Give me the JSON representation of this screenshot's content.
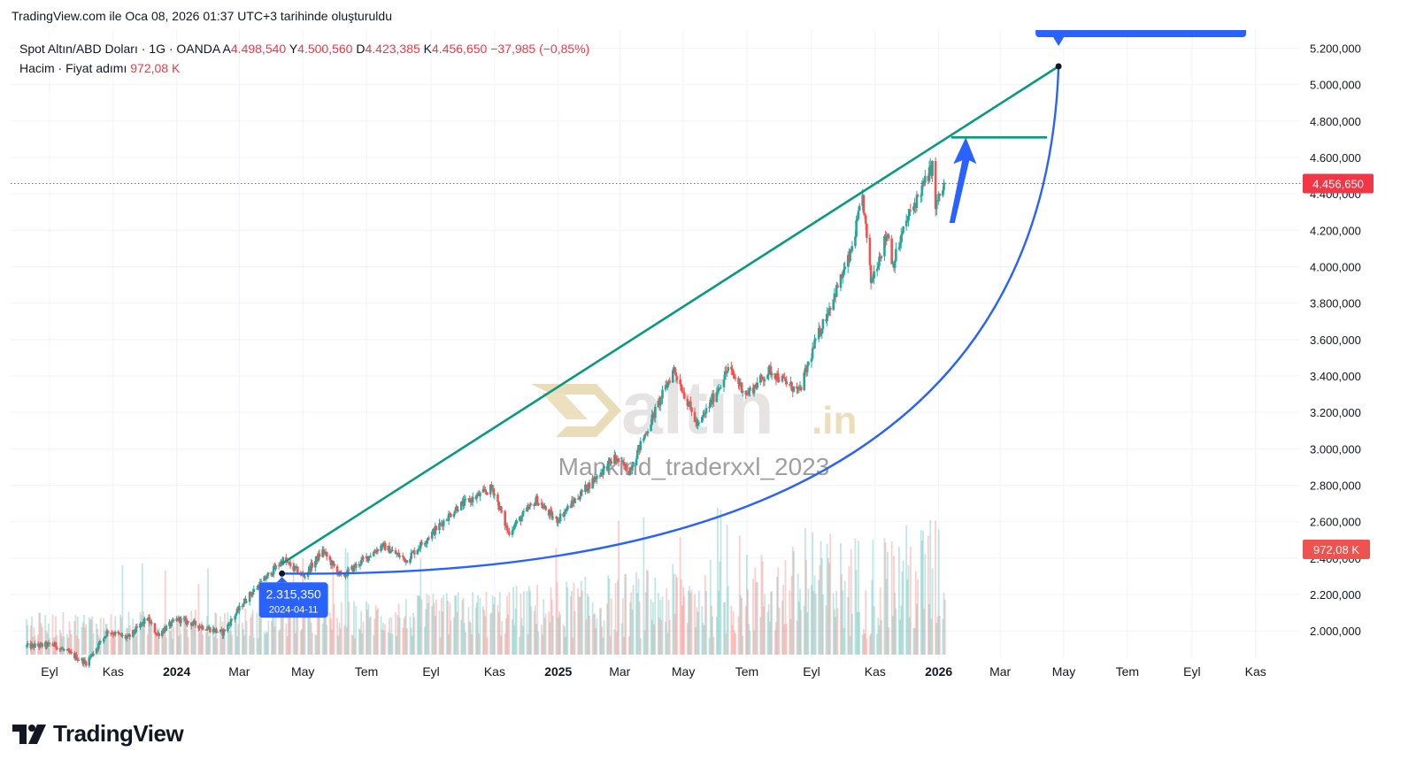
{
  "snapshot_line": "TradingView.com ile Oca 08, 2026 01:37 UTC+3 tarihinde oluşturuldu",
  "legend": {
    "symbol": "Spot Altın/ABD Doları · 1G · OANDA",
    "o_label": "A",
    "o_value": "4.498,540",
    "h_label": "Y",
    "h_value": "4.500,560",
    "l_label": "D",
    "l_value": "4.423,385",
    "c_label": "K",
    "c_value": "4.456,650",
    "change": "−37,985 (−0,85%)",
    "volume_label": "Hacim · Fiyat adımı",
    "volume_value": "972,08 K"
  },
  "watermark": {
    "brand": "altin",
    "suffix": ".in",
    "author": "Mankind_traderxxl_2023"
  },
  "footer": {
    "brand": "TradingView"
  },
  "colors": {
    "up": "#26a69a",
    "down": "#ef5350",
    "channel": "#089981",
    "curve": "#2962ff",
    "price_line": "#f23645",
    "grid": "#f0f3fa",
    "axis_text": "#131722"
  },
  "chart_data": {
    "type": "candlestick",
    "y_axis": {
      "ticks": [
        "2.000,000",
        "2.200,000",
        "2.400,000",
        "2.600,000",
        "2.800,000",
        "3.000,000",
        "3.200,000",
        "3.400,000",
        "3.600,000",
        "3.800,000",
        "4.000,000",
        "4.200,000",
        "4.400,000",
        "4.600,000",
        "4.800,000",
        "5.000,000",
        "5.200,000"
      ],
      "tick_values": [
        2000,
        2200,
        2400,
        2600,
        2800,
        3000,
        3200,
        3400,
        3600,
        3800,
        4000,
        4200,
        4400,
        4600,
        4800,
        5000,
        5200
      ],
      "range": [
        1870,
        5270
      ]
    },
    "x_axis": {
      "labels": [
        "Eyl",
        "Kas",
        "2024",
        "Mar",
        "May",
        "Tem",
        "Eyl",
        "Kas",
        "2025",
        "Mar",
        "May",
        "Tem",
        "Eyl",
        "Kas",
        "2026",
        "Mar",
        "May",
        "Tem",
        "Eyl",
        "Kas"
      ],
      "bold": [
        false,
        false,
        true,
        false,
        false,
        false,
        false,
        false,
        true,
        false,
        false,
        false,
        false,
        false,
        true,
        false,
        false,
        false,
        false,
        false
      ],
      "dates": [
        "2023-09-01",
        "2023-11-01",
        "2024-01-01",
        "2024-03-01",
        "2024-05-01",
        "2024-07-01",
        "2024-09-01",
        "2024-11-01",
        "2025-01-01",
        "2025-03-01",
        "2025-05-01",
        "2025-07-01",
        "2025-09-01",
        "2025-11-01",
        "2026-01-01",
        "2026-03-01",
        "2026-05-01",
        "2026-07-01",
        "2026-09-01",
        "2026-11-01"
      ],
      "range": [
        "2023-08-10",
        "2026-12-20"
      ]
    },
    "price_path": [
      [
        "2023-08-10",
        1915
      ],
      [
        "2023-09-05",
        1925
      ],
      [
        "2023-10-06",
        1825
      ],
      [
        "2023-10-27",
        2000
      ],
      [
        "2023-11-15",
        1960
      ],
      [
        "2023-12-04",
        2070
      ],
      [
        "2023-12-13",
        1980
      ],
      [
        "2024-01-02",
        2065
      ],
      [
        "2024-02-14",
        1990
      ],
      [
        "2024-03-08",
        2180
      ],
      [
        "2024-04-12",
        2390
      ],
      [
        "2024-05-02",
        2300
      ],
      [
        "2024-05-20",
        2440
      ],
      [
        "2024-06-07",
        2295
      ],
      [
        "2024-07-16",
        2470
      ],
      [
        "2024-08-08",
        2390
      ],
      [
        "2024-09-26",
        2680
      ],
      [
        "2024-10-30",
        2785
      ],
      [
        "2024-11-14",
        2540
      ],
      [
        "2024-12-11",
        2720
      ],
      [
        "2024-12-30",
        2605
      ],
      [
        "2025-01-30",
        2800
      ],
      [
        "2025-02-24",
        2950
      ],
      [
        "2025-03-10",
        2880
      ],
      [
        "2025-04-22",
        3440
      ],
      [
        "2025-05-15",
        3120
      ],
      [
        "2025-06-13",
        3440
      ],
      [
        "2025-07-01",
        3300
      ],
      [
        "2025-07-23",
        3430
      ],
      [
        "2025-08-20",
        3310
      ],
      [
        "2025-09-05",
        3590
      ],
      [
        "2025-10-08",
        4060
      ],
      [
        "2025-10-20",
        4380
      ],
      [
        "2025-10-28",
        3920
      ],
      [
        "2025-11-13",
        4190
      ],
      [
        "2025-11-18",
        4010
      ],
      [
        "2025-12-01",
        4250
      ],
      [
        "2025-12-26",
        4550
      ],
      [
        "2025-12-29",
        4330
      ],
      [
        "2026-01-07",
        4457
      ]
    ],
    "volume_scale": {
      "label_value": 972.08,
      "unit": "K"
    },
    "last_price": {
      "value": 4456.65,
      "label": "4.456,650"
    },
    "volume_label": "972,08 K",
    "annotations": {
      "start_point": {
        "date": "2024-04-11",
        "price": 2315.35,
        "label": "2.315,350",
        "date_label": "2024-04-11"
      },
      "target_point": {
        "date": "2026-04-26",
        "price": 5100
      },
      "channel_line": {
        "from": [
          "2024-04-11",
          2370
        ],
        "to": [
          "2026-04-26",
          5100
        ]
      },
      "target_level": {
        "from": [
          "2026-01-13",
          4710
        ],
        "to": [
          "2026-04-15",
          4710
        ],
        "price": 4710
      },
      "arrow": {
        "from": [
          "2026-01-13",
          4240
        ],
        "to": [
          "2026-01-27",
          4710
        ]
      }
    }
  }
}
